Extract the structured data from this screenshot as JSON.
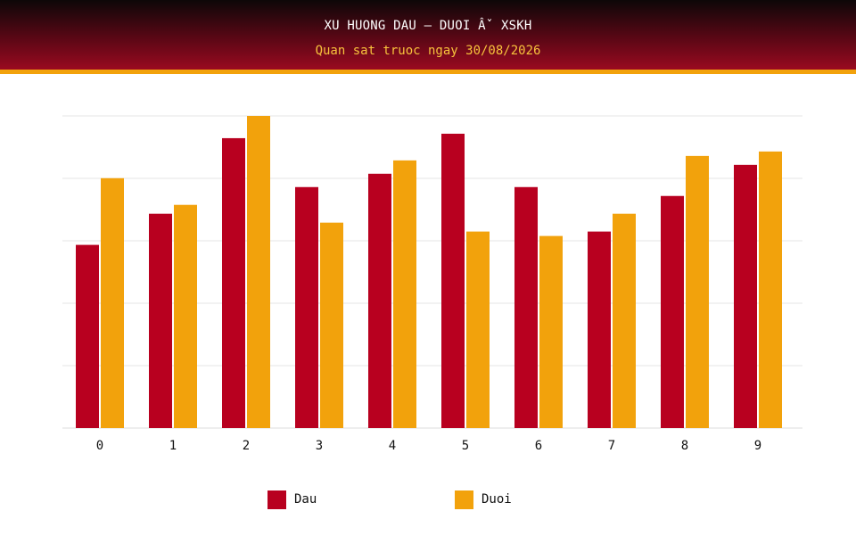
{
  "header": {
    "title": "XU HUONG DAU – DUOI Âˇ XSKH",
    "subtitle": "Quan sat truoc ngay 30/08/2026"
  },
  "colors": {
    "dau": "#b8001f",
    "duoi": "#f2a20c",
    "grid": "#e4e4e4",
    "header_text": "#ffffff",
    "subtitle_text": "#f7c23c"
  },
  "chart_data": {
    "type": "bar",
    "title": "XU HUONG DAU – DUOI Âˇ XSKH",
    "subtitle": "Quan sat truoc ngay 30/08/2026",
    "categories": [
      "0",
      "1",
      "2",
      "3",
      "4",
      "5",
      "6",
      "7",
      "8",
      "9"
    ],
    "series": [
      {
        "name": "Dau",
        "color": "#b8001f",
        "values": [
          41.2,
          48.2,
          65.2,
          54.2,
          57.2,
          66.2,
          54.2,
          44.2,
          52.2,
          59.2
        ]
      },
      {
        "name": "Duoi",
        "color": "#f2a20c",
        "values": [
          56.2,
          50.2,
          70.2,
          46.2,
          60.2,
          44.2,
          43.2,
          48.2,
          61.2,
          62.2
        ]
      }
    ],
    "ylim": [
      0,
      70.2
    ],
    "grid": true,
    "y_tick_labels_shown": false,
    "legend_position": "bottom"
  },
  "legend": {
    "items": [
      {
        "label": "Dau",
        "color": "#b8001f"
      },
      {
        "label": "Duoi",
        "color": "#f2a20c"
      }
    ]
  }
}
